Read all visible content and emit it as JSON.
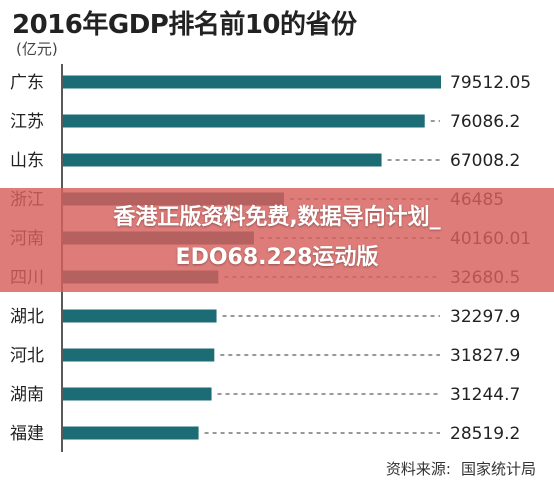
{
  "chart_data": {
    "type": "bar",
    "orientation": "horizontal",
    "title": "2016年GDP排名前10的省份",
    "unit": "(亿元)",
    "categories": [
      "广东",
      "江苏",
      "山东",
      "浙江",
      "河南",
      "四川",
      "湖北",
      "河北",
      "湖南",
      "福建"
    ],
    "values": [
      79512.05,
      76086.2,
      67008.2,
      46485,
      40160.01,
      32680.5,
      32297.9,
      31827.9,
      31244.7,
      28519.2
    ],
    "value_labels": [
      "79512.05",
      "76086.2",
      "67008.2",
      "46485",
      "40160.01",
      "32680.5",
      "32297.9",
      "31827.9",
      "31244.7",
      "28519.2"
    ],
    "xlim": [
      0,
      79512.05
    ],
    "grid": false,
    "bar_color": "#1c6c75",
    "source": {
      "label": "资料来源:",
      "name": "国家统计局"
    }
  },
  "overlay": {
    "line1": "香港正版资料免费,数据导向计划_",
    "line2": "EDO68.228运动版"
  }
}
